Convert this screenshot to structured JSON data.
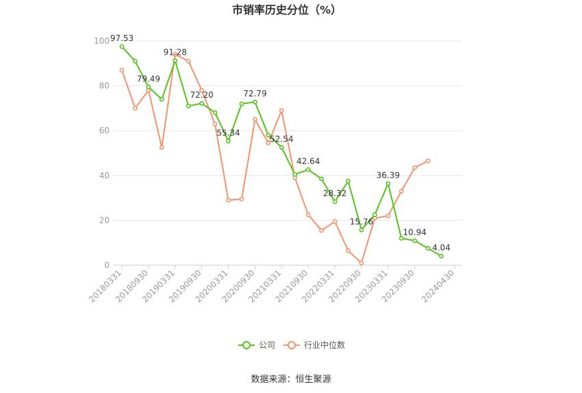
{
  "chart_data": {
    "type": "line",
    "title": "市销率历史分位（%）",
    "xlabel": "",
    "ylabel": "",
    "ylim": [
      0,
      100
    ],
    "yticks": [
      0,
      20,
      40,
      60,
      80,
      100
    ],
    "grid": true,
    "legend_position": "bottom",
    "x": [
      "20180331",
      "20180630",
      "20180930",
      "20181231",
      "20190331",
      "20190630",
      "20190930",
      "20191231",
      "20200331",
      "20200630",
      "20200930",
      "20201231",
      "20210331",
      "20210630",
      "20210930",
      "20211231",
      "20220331",
      "20220630",
      "20220930",
      "20221231",
      "20230331",
      "20230630",
      "20230930",
      "20231231",
      "20240331",
      "20240430"
    ],
    "xtick_labels": [
      "20180331",
      "20180930",
      "20190331",
      "20190930",
      "20200331",
      "20200930",
      "20210331",
      "20210930",
      "20220331",
      "20220930",
      "20230331",
      "20230930",
      "20240430"
    ],
    "series": [
      {
        "name": "公司",
        "color": "#52c41a",
        "values": [
          97.53,
          91.0,
          79.49,
          74.0,
          91.28,
          71.0,
          72.2,
          68.0,
          55.34,
          72.0,
          72.79,
          58.0,
          52.54,
          40.5,
          42.64,
          38.5,
          28.32,
          37.5,
          15.76,
          22.5,
          36.39,
          12.0,
          10.94,
          7.5,
          4.04,
          null
        ],
        "data_labels": {
          "0": "97.53",
          "2": "79.49",
          "4": "91.28",
          "6": "72.20",
          "8": "55.34",
          "10": "72.79",
          "12": "52.54",
          "14": "42.64",
          "16": "28.32",
          "18": "15.76",
          "20": "36.39",
          "22": "10.94",
          "24": "4.04"
        }
      },
      {
        "name": "行业中位数",
        "color": "#f5916b",
        "values": [
          87.0,
          70.0,
          78.0,
          52.5,
          94.0,
          91.0,
          78.0,
          63.0,
          29.0,
          29.5,
          65.0,
          54.5,
          69.0,
          39.0,
          22.5,
          15.5,
          19.5,
          6.5,
          1.0,
          21.0,
          22.0,
          33.0,
          43.5,
          46.5,
          null,
          null
        ]
      }
    ]
  },
  "source_text": "数据来源：恒生聚源"
}
